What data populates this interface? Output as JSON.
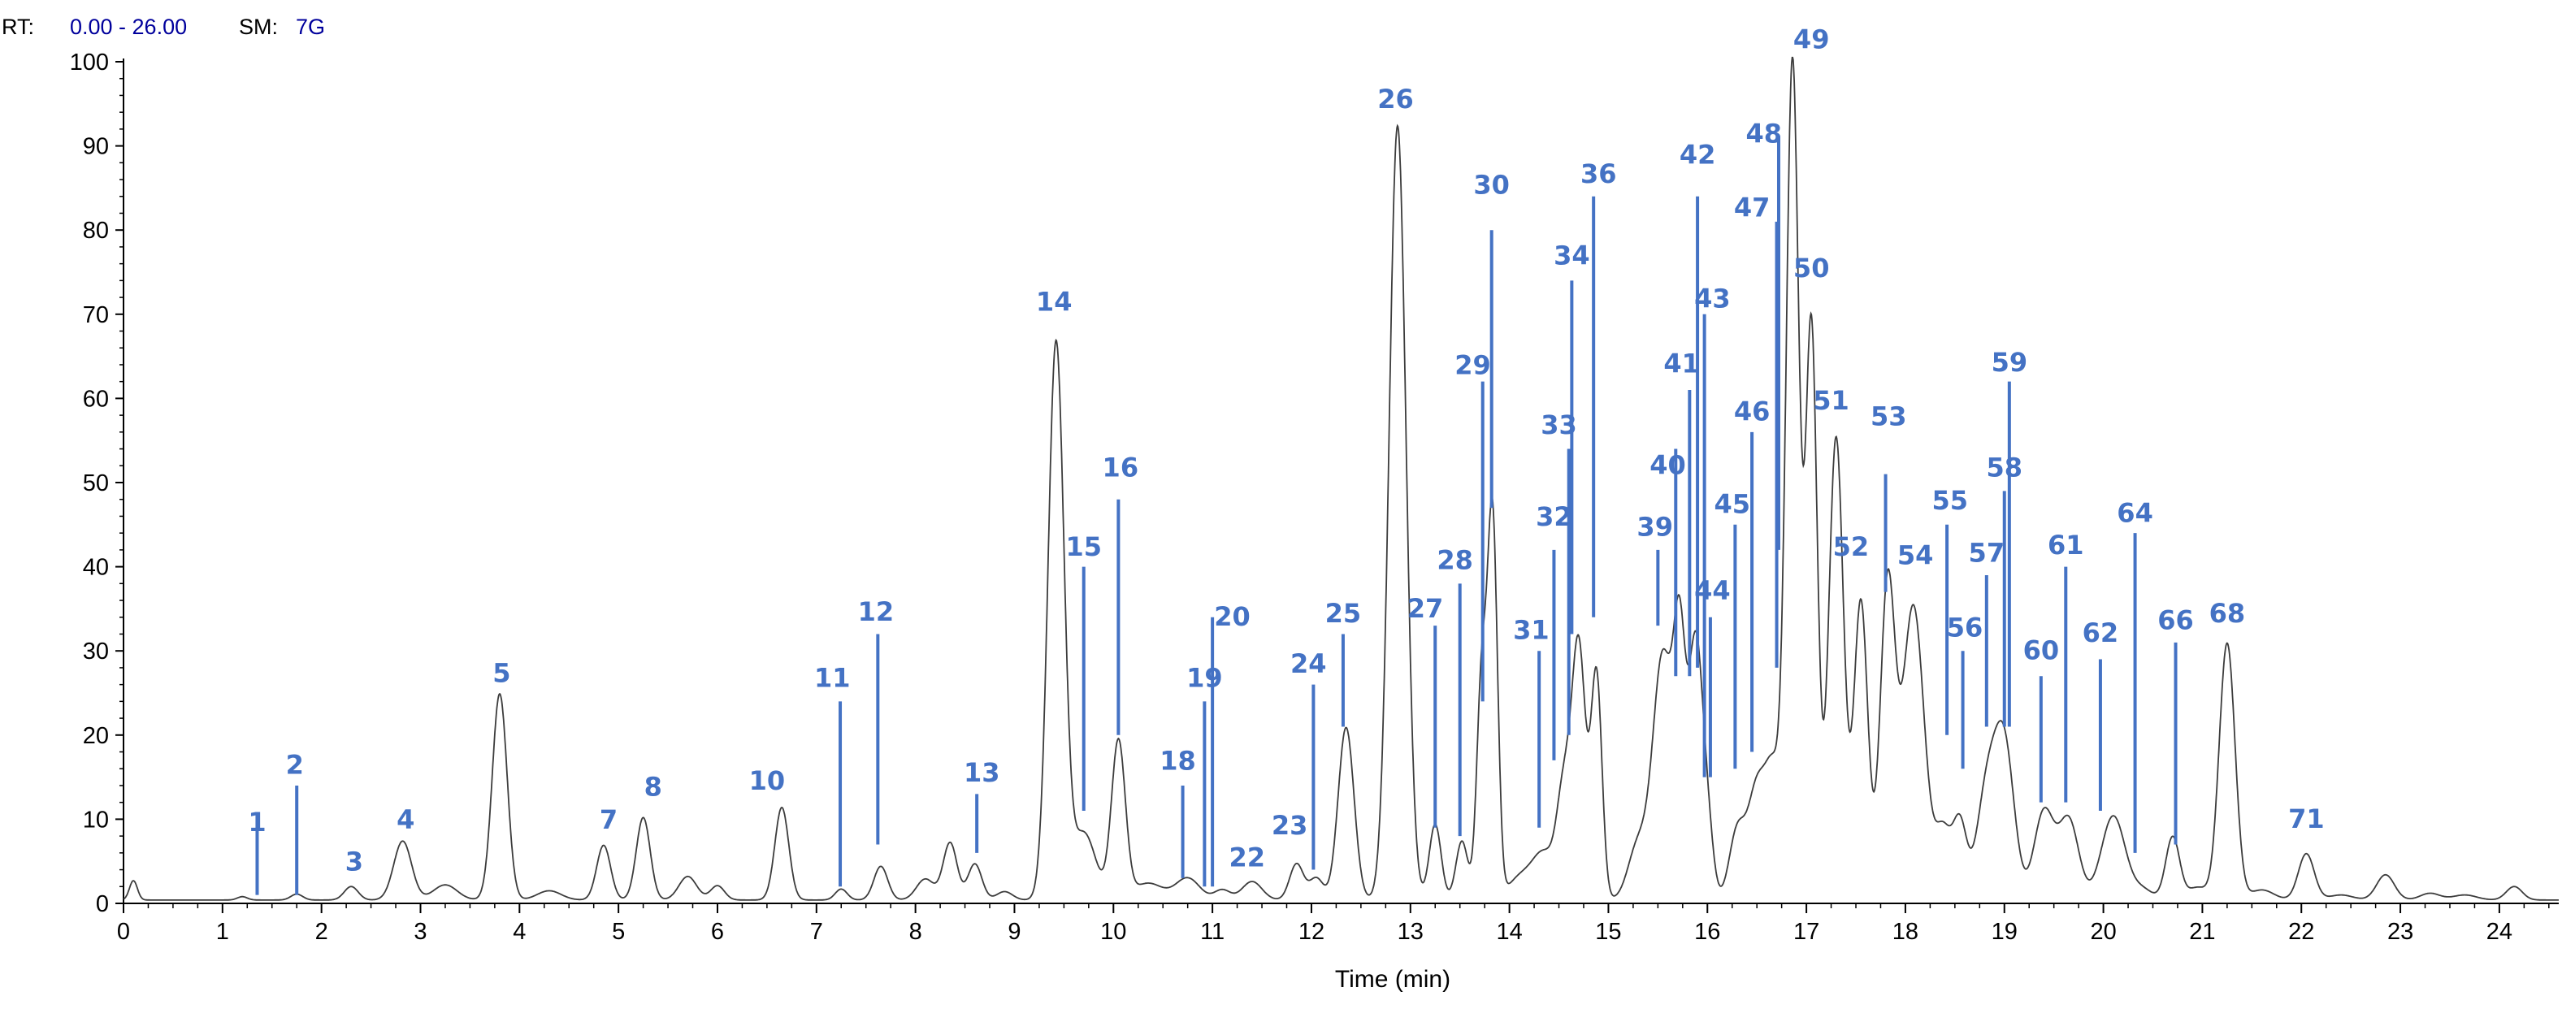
{
  "header": {
    "rt_label": "RT:",
    "rt_value": "0.00 - 26.00",
    "sm_label": "SM:",
    "sm_value": "7G"
  },
  "colors": {
    "trace": "#3c3c3c",
    "annotation": "#4472c4",
    "header_value": "#00009c",
    "axis": "#000000"
  },
  "chart_data": {
    "type": "line",
    "xlabel": "Time (min)",
    "ylabel": "",
    "xlim": [
      0,
      24.6
    ],
    "ylim": [
      0,
      100
    ],
    "x_ticks": [
      0,
      1,
      2,
      3,
      4,
      5,
      6,
      7,
      8,
      9,
      10,
      11,
      12,
      13,
      14,
      15,
      16,
      17,
      18,
      19,
      20,
      21,
      22,
      23,
      24
    ],
    "y_ticks": [
      0,
      10,
      20,
      30,
      40,
      50,
      60,
      70,
      80,
      90,
      100
    ],
    "grid": false,
    "baseline": 0.4,
    "peaks": [
      {
        "x": 0.1,
        "y": 2.3,
        "w": 0.04
      },
      {
        "x": 1.2,
        "y": 0.4,
        "w": 0.05
      },
      {
        "x": 1.75,
        "y": 0.7,
        "w": 0.06
      },
      {
        "x": 2.3,
        "y": 1.6,
        "w": 0.07
      },
      {
        "x": 2.82,
        "y": 7.0,
        "w": 0.09
      },
      {
        "x": 3.25,
        "y": 1.8,
        "w": 0.12
      },
      {
        "x": 3.8,
        "y": 24.5,
        "w": 0.075
      },
      {
        "x": 4.3,
        "y": 1.1,
        "w": 0.12
      },
      {
        "x": 4.85,
        "y": 6.5,
        "w": 0.07
      },
      {
        "x": 5.25,
        "y": 9.8,
        "w": 0.07
      },
      {
        "x": 5.7,
        "y": 2.8,
        "w": 0.09
      },
      {
        "x": 6.0,
        "y": 1.7,
        "w": 0.07
      },
      {
        "x": 6.65,
        "y": 11.0,
        "w": 0.07
      },
      {
        "x": 7.25,
        "y": 1.3,
        "w": 0.06
      },
      {
        "x": 7.65,
        "y": 4.0,
        "w": 0.07
      },
      {
        "x": 8.1,
        "y": 2.5,
        "w": 0.09
      },
      {
        "x": 8.35,
        "y": 6.8,
        "w": 0.07
      },
      {
        "x": 8.6,
        "y": 4.3,
        "w": 0.07
      },
      {
        "x": 8.9,
        "y": 1.0,
        "w": 0.08
      },
      {
        "x": 9.42,
        "y": 66.0,
        "w": 0.08
      },
      {
        "x": 9.7,
        "y": 8.0,
        "w": 0.12
      },
      {
        "x": 10.05,
        "y": 18.8,
        "w": 0.07
      },
      {
        "x": 10.35,
        "y": 2.0,
        "w": 0.15
      },
      {
        "x": 10.75,
        "y": 2.6,
        "w": 0.12
      },
      {
        "x": 11.1,
        "y": 1.2,
        "w": 0.08
      },
      {
        "x": 11.4,
        "y": 2.2,
        "w": 0.1
      },
      {
        "x": 11.85,
        "y": 4.3,
        "w": 0.07
      },
      {
        "x": 12.05,
        "y": 2.6,
        "w": 0.07
      },
      {
        "x": 12.35,
        "y": 20.5,
        "w": 0.08
      },
      {
        "x": 12.87,
        "y": 92.0,
        "w": 0.085
      },
      {
        "x": 13.25,
        "y": 9.0,
        "w": 0.06
      },
      {
        "x": 13.52,
        "y": 7.0,
        "w": 0.06
      },
      {
        "x": 13.72,
        "y": 26.0,
        "w": 0.05
      },
      {
        "x": 13.83,
        "y": 45.0,
        "w": 0.05
      },
      {
        "x": 14.1,
        "y": 2.5,
        "w": 0.12
      },
      {
        "x": 14.35,
        "y": 5.5,
        "w": 0.12
      },
      {
        "x": 14.55,
        "y": 12.0,
        "w": 0.07
      },
      {
        "x": 14.7,
        "y": 30.0,
        "w": 0.07
      },
      {
        "x": 14.88,
        "y": 26.5,
        "w": 0.055
      },
      {
        "x": 15.3,
        "y": 6.5,
        "w": 0.1
      },
      {
        "x": 15.55,
        "y": 29.0,
        "w": 0.1
      },
      {
        "x": 15.72,
        "y": 27.0,
        "w": 0.06
      },
      {
        "x": 15.88,
        "y": 30.0,
        "w": 0.07
      },
      {
        "x": 16.0,
        "y": 8.0,
        "w": 0.06
      },
      {
        "x": 16.3,
        "y": 8.0,
        "w": 0.08
      },
      {
        "x": 16.5,
        "y": 13.0,
        "w": 0.09
      },
      {
        "x": 16.67,
        "y": 14.0,
        "w": 0.08
      },
      {
        "x": 16.86,
        "y": 99.0,
        "w": 0.065
      },
      {
        "x": 17.05,
        "y": 68.0,
        "w": 0.06
      },
      {
        "x": 17.3,
        "y": 55.0,
        "w": 0.075
      },
      {
        "x": 17.55,
        "y": 35.5,
        "w": 0.07
      },
      {
        "x": 17.82,
        "y": 37.0,
        "w": 0.075
      },
      {
        "x": 18.08,
        "y": 35.0,
        "w": 0.11
      },
      {
        "x": 18.38,
        "y": 8.0,
        "w": 0.08
      },
      {
        "x": 18.55,
        "y": 9.0,
        "w": 0.07
      },
      {
        "x": 18.82,
        "y": 12.5,
        "w": 0.1
      },
      {
        "x": 19.0,
        "y": 18.0,
        "w": 0.1
      },
      {
        "x": 19.4,
        "y": 10.5,
        "w": 0.1
      },
      {
        "x": 19.65,
        "y": 9.5,
        "w": 0.1
      },
      {
        "x": 20.1,
        "y": 10.0,
        "w": 0.12
      },
      {
        "x": 20.4,
        "y": 1.2,
        "w": 0.1
      },
      {
        "x": 20.7,
        "y": 7.5,
        "w": 0.07
      },
      {
        "x": 20.95,
        "y": 1.5,
        "w": 0.1
      },
      {
        "x": 21.25,
        "y": 30.5,
        "w": 0.08
      },
      {
        "x": 21.6,
        "y": 1.2,
        "w": 0.12
      },
      {
        "x": 22.05,
        "y": 5.5,
        "w": 0.08
      },
      {
        "x": 22.4,
        "y": 0.6,
        "w": 0.12
      },
      {
        "x": 22.85,
        "y": 3.0,
        "w": 0.09
      },
      {
        "x": 23.3,
        "y": 0.8,
        "w": 0.1
      },
      {
        "x": 23.65,
        "y": 0.6,
        "w": 0.12
      },
      {
        "x": 24.15,
        "y": 1.6,
        "w": 0.08
      }
    ],
    "annotations": [
      {
        "label": "1",
        "x": 1.35,
        "y": 1.0,
        "top": 9,
        "lx": 1.35,
        "ly": 8.6
      },
      {
        "label": "2",
        "x": 1.75,
        "y": 1.0,
        "top": 14,
        "lx": 1.73,
        "ly": 15.4
      },
      {
        "label": "3",
        "x": 2.33,
        "ly": 3.9,
        "lx": 2.33
      },
      {
        "label": "4",
        "x": 2.85,
        "ly": 8.9,
        "lx": 2.85
      },
      {
        "label": "5",
        "x": 3.82,
        "ly": 26.3,
        "lx": 3.82
      },
      {
        "label": "7",
        "x": 4.9,
        "ly": 8.9,
        "lx": 4.9
      },
      {
        "label": "8",
        "x": 5.35,
        "ly": 12.8,
        "lx": 5.35
      },
      {
        "label": "10",
        "x": 6.5,
        "ly": 13.5,
        "lx": 6.5
      },
      {
        "label": "11",
        "x": 7.24,
        "y": 2.0,
        "top": 24,
        "lx": 7.16,
        "ly": 25.7
      },
      {
        "label": "12",
        "x": 7.62,
        "y": 7.0,
        "top": 32,
        "lx": 7.6,
        "ly": 33.6
      },
      {
        "label": "13",
        "x": 8.62,
        "y": 6.0,
        "top": 13,
        "lx": 8.67,
        "ly": 14.5
      },
      {
        "label": "14",
        "x": 9.4,
        "ly": 70.4,
        "lx": 9.4
      },
      {
        "label": "15",
        "x": 9.7,
        "y": 11.0,
        "top": 40,
        "lx": 9.7,
        "ly": 41.3
      },
      {
        "label": "16",
        "x": 10.05,
        "y": 20.0,
        "top": 48,
        "lx": 10.07,
        "ly": 50.7
      },
      {
        "label": "18",
        "x": 10.7,
        "y": 3.0,
        "top": 14,
        "lx": 10.65,
        "ly": 15.9
      },
      {
        "label": "19",
        "x": 10.92,
        "y": 2.0,
        "top": 24,
        "lx": 10.92,
        "ly": 25.7
      },
      {
        "label": "20",
        "x": 11.0,
        "y": 2.0,
        "top": 34,
        "lx": 11.2,
        "ly": 33.0
      },
      {
        "label": "22",
        "x": 11.35,
        "ly": 4.4,
        "lx": 11.35
      },
      {
        "label": "23",
        "x": 11.78,
        "ly": 8.2,
        "lx": 11.78
      },
      {
        "label": "24",
        "x": 12.02,
        "y": 4.0,
        "top": 26,
        "lx": 11.97,
        "ly": 27.4
      },
      {
        "label": "25",
        "x": 12.32,
        "y": 21.0,
        "top": 32,
        "lx": 12.32,
        "ly": 33.4
      },
      {
        "label": "26",
        "x": 12.85,
        "ly": 94.5,
        "lx": 12.85
      },
      {
        "label": "27",
        "x": 13.25,
        "y": 9.0,
        "top": 33,
        "lx": 13.15,
        "ly": 34.0
      },
      {
        "label": "28",
        "x": 13.5,
        "y": 8.0,
        "top": 38,
        "lx": 13.45,
        "ly": 39.7
      },
      {
        "label": "29",
        "x": 13.73,
        "y": 24.0,
        "top": 62,
        "lx": 13.63,
        "ly": 62.9
      },
      {
        "label": "30",
        "x": 13.82,
        "y": 47.0,
        "top": 80,
        "lx": 13.82,
        "ly": 84.3
      },
      {
        "label": "31",
        "x": 14.3,
        "y": 9.0,
        "top": 30,
        "lx": 14.22,
        "ly": 31.4
      },
      {
        "label": "32",
        "x": 14.45,
        "y": 17.0,
        "top": 42,
        "lx": 14.45,
        "ly": 44.9
      },
      {
        "label": "33",
        "x": 14.6,
        "y": 20.0,
        "top": 54,
        "lx": 14.5,
        "ly": 55.8
      },
      {
        "label": "34",
        "x": 14.63,
        "y": 32.0,
        "top": 74,
        "lx": 14.63,
        "ly": 75.9
      },
      {
        "label": "36",
        "x": 14.85,
        "y": 34.0,
        "top": 84,
        "lx": 14.9,
        "ly": 85.6
      },
      {
        "label": "39",
        "x": 15.5,
        "y": 33.0,
        "top": 42,
        "lx": 15.47,
        "ly": 43.7
      },
      {
        "label": "40",
        "x": 15.68,
        "y": 27.0,
        "top": 54,
        "lx": 15.6,
        "ly": 51.0
      },
      {
        "label": "41",
        "x": 15.82,
        "y": 27.0,
        "top": 61,
        "lx": 15.74,
        "ly": 63.1
      },
      {
        "label": "42",
        "x": 15.9,
        "y": 28.0,
        "top": 84,
        "lx": 15.9,
        "ly": 87.9
      },
      {
        "label": "43",
        "x": 15.97,
        "y": 15.0,
        "top": 70,
        "lx": 16.05,
        "ly": 70.8
      },
      {
        "label": "44",
        "x": 16.03,
        "y": 15.0,
        "top": 34,
        "lx": 16.05,
        "ly": 36.1
      },
      {
        "label": "45",
        "x": 16.28,
        "y": 16.0,
        "top": 45,
        "lx": 16.25,
        "ly": 46.4
      },
      {
        "label": "46",
        "x": 16.45,
        "y": 18.0,
        "top": 56,
        "lx": 16.45,
        "ly": 57.4
      },
      {
        "label": "47",
        "x": 16.7,
        "y": 28.0,
        "top": 81,
        "lx": 16.45,
        "ly": 81.6
      },
      {
        "label": "48",
        "x": 16.72,
        "y": 42.0,
        "top": 91,
        "lx": 16.57,
        "ly": 90.4
      },
      {
        "label": "49",
        "x": 17.05,
        "ly": 101.6,
        "lx": 17.05
      },
      {
        "label": "50",
        "x": 17.05,
        "ly": 74.4,
        "lx": 17.05
      },
      {
        "label": "51",
        "x": 17.25,
        "ly": 58.7,
        "lx": 17.25
      },
      {
        "label": "52",
        "x": 17.5,
        "ly": 41.3,
        "lx": 17.45
      },
      {
        "label": "53",
        "x": 17.8,
        "y": 37.0,
        "top": 51,
        "lx": 17.83,
        "ly": 56.8
      },
      {
        "label": "54",
        "x": 18.1,
        "ly": 40.3,
        "lx": 18.1
      },
      {
        "label": "55",
        "x": 18.42,
        "y": 20.0,
        "top": 45,
        "lx": 18.45,
        "ly": 46.8
      },
      {
        "label": "56",
        "x": 18.58,
        "y": 16.0,
        "top": 30,
        "lx": 18.6,
        "ly": 31.7
      },
      {
        "label": "57",
        "x": 18.82,
        "y": 21.0,
        "top": 39,
        "lx": 18.82,
        "ly": 40.6
      },
      {
        "label": "58",
        "x": 19.0,
        "y": 21.0,
        "top": 49,
        "lx": 19.0,
        "ly": 50.7
      },
      {
        "label": "59",
        "x": 19.05,
        "y": 21.0,
        "top": 62,
        "lx": 19.05,
        "ly": 63.2
      },
      {
        "label": "60",
        "x": 19.37,
        "y": 12.0,
        "top": 27,
        "lx": 19.37,
        "ly": 29.0
      },
      {
        "label": "61",
        "x": 19.62,
        "y": 12.0,
        "top": 40,
        "lx": 19.62,
        "ly": 41.5
      },
      {
        "label": "62",
        "x": 19.97,
        "y": 11.0,
        "top": 29,
        "lx": 19.97,
        "ly": 31.1
      },
      {
        "label": "64",
        "x": 20.32,
        "y": 6.0,
        "top": 44,
        "lx": 20.32,
        "ly": 45.3
      },
      {
        "label": "66",
        "x": 20.73,
        "y": 7.0,
        "top": 31,
        "lx": 20.73,
        "ly": 32.6
      },
      {
        "label": "68",
        "x": 21.25,
        "ly": 33.4,
        "lx": 21.25
      },
      {
        "label": "71",
        "x": 22.05,
        "ly": 9.0,
        "lx": 22.05
      }
    ]
  }
}
